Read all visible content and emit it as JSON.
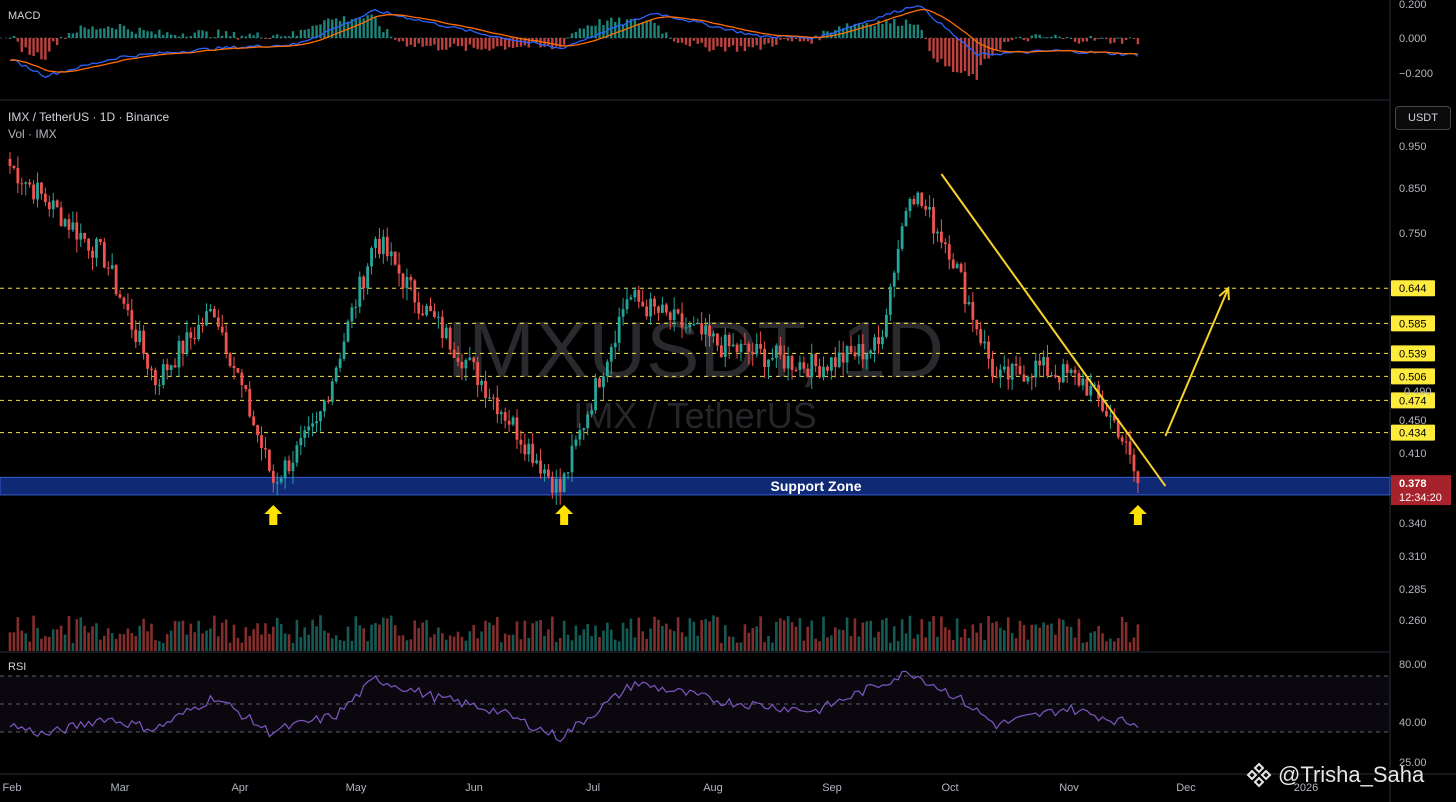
{
  "header": {
    "symbol_title": "IMX / TetherUS · 1D · Binance",
    "vol_label": "Vol · IMX",
    "macd_label": "MACD",
    "rsi_label": "RSI",
    "currency_button": "USDT",
    "watermark_symbol": "IMXUSDT, 1D",
    "watermark_name": "IMX / TetherUS"
  },
  "price_axis": {
    "ticks": [
      "0.950",
      "0.850",
      "0.750",
      "0.450",
      "0.410",
      "0.340",
      "0.310",
      "0.285",
      "0.260"
    ],
    "hidden_tick": "0.490"
  },
  "macd_axis": {
    "ticks": [
      "0.200",
      "0.000",
      "−0.200"
    ]
  },
  "rsi_axis": {
    "ticks": [
      "80.00",
      "40.00",
      "25.00"
    ]
  },
  "time_axis": {
    "labels": [
      "Feb",
      "Mar",
      "Apr",
      "May",
      "Jun",
      "Jul",
      "Aug",
      "Sep",
      "Oct",
      "Nov",
      "Dec",
      "2026"
    ]
  },
  "levels": {
    "values": [
      "0.644",
      "0.585",
      "0.539",
      "0.506",
      "0.474",
      "0.434"
    ],
    "current_price": "0.378",
    "countdown": "12:34:20",
    "support_zone_label": "Support Zone"
  },
  "credit": {
    "handle": "@Trisha_Saha"
  },
  "colors": {
    "up": "#26a69a",
    "down": "#ef5350",
    "level_line": "#f5e63a",
    "level_tag": "#ffeb3b",
    "trendline": "#f7d22a",
    "support_zone": "#12308a",
    "rsi": "#7e57c2",
    "macd": "#2962ff",
    "signal": "#ff6d00"
  },
  "chart_data": {
    "type": "candlestick",
    "symbol": "IMX / TetherUS",
    "interval": "1D",
    "exchange": "Binance",
    "close_path": [
      {
        "date": "Feb 1",
        "close": 0.9
      },
      {
        "date": "Feb 10",
        "close": 0.82
      },
      {
        "date": "Feb 25",
        "close": 0.7
      },
      {
        "date": "Mar 10",
        "close": 0.5
      },
      {
        "date": "Mar 25",
        "close": 0.61
      },
      {
        "date": "Apr 9",
        "close": 0.38
      },
      {
        "date": "Apr 20",
        "close": 0.44
      },
      {
        "date": "May 5",
        "close": 0.74
      },
      {
        "date": "May 15",
        "close": 0.63
      },
      {
        "date": "Jun 1",
        "close": 0.5
      },
      {
        "date": "Jun 21",
        "close": 0.37
      },
      {
        "date": "Jul 8",
        "close": 0.63
      },
      {
        "date": "Aug 1",
        "close": 0.55
      },
      {
        "date": "Aug 25",
        "close": 0.52
      },
      {
        "date": "Sep 10",
        "close": 0.55
      },
      {
        "date": "Sep 18",
        "close": 0.85
      },
      {
        "date": "Sep 28",
        "close": 0.72
      },
      {
        "date": "Oct 10",
        "close": 0.5
      },
      {
        "date": "Oct 20",
        "close": 0.52
      },
      {
        "date": "Nov 1",
        "close": 0.5
      },
      {
        "date": "Nov 10",
        "close": 0.44
      },
      {
        "date": "Nov 15",
        "close": 0.378
      }
    ],
    "last_close": 0.378,
    "horizontal_levels": [
      0.644,
      0.585,
      0.539,
      0.506,
      0.474,
      0.434
    ],
    "support_zone": [
      0.366,
      0.384
    ],
    "support_arrow_dates": [
      "Apr 9",
      "Jun 22",
      "Nov 15"
    ],
    "descending_trendline": [
      {
        "date": "Sep 26",
        "price": 0.88
      },
      {
        "date": "Nov 22",
        "price": 0.375
      }
    ],
    "projection_arrow": [
      {
        "date": "Nov 22",
        "price": 0.43
      },
      {
        "date": "Dec 8",
        "price": 0.644
      }
    ],
    "rsi_path": [
      {
        "date": "Feb 1",
        "rsi": 35
      },
      {
        "date": "Feb 10",
        "rsi": 28
      },
      {
        "date": "Feb 25",
        "rsi": 40
      },
      {
        "date": "Mar 10",
        "rsi": 32
      },
      {
        "date": "Mar 25",
        "rsi": 55
      },
      {
        "date": "Apr 8",
        "rsi": 30
      },
      {
        "date": "Apr 25",
        "rsi": 42
      },
      {
        "date": "May 5",
        "rsi": 68
      },
      {
        "date": "May 20",
        "rsi": 55
      },
      {
        "date": "Jun 5",
        "rsi": 45
      },
      {
        "date": "Jun 21",
        "rsi": 26
      },
      {
        "date": "Jul 10",
        "rsi": 65
      },
      {
        "date": "Aug 1",
        "rsi": 52
      },
      {
        "date": "Aug 25",
        "rsi": 45
      },
      {
        "date": "Sep 18",
        "rsi": 73
      },
      {
        "date": "Sep 30",
        "rsi": 55
      },
      {
        "date": "Oct 10",
        "rsi": 35
      },
      {
        "date": "Oct 28",
        "rsi": 47
      },
      {
        "date": "Nov 10",
        "rsi": 38
      },
      {
        "date": "Nov 15",
        "rsi": 36
      }
    ],
    "rsi_bands": [
      30,
      50,
      70
    ],
    "macd_path": [
      {
        "date": "Feb 1",
        "macd": -0.1
      },
      {
        "date": "Feb 10",
        "macd": -0.18
      },
      {
        "date": "Mar 1",
        "macd": -0.09
      },
      {
        "date": "Mar 25",
        "macd": -0.05
      },
      {
        "date": "Apr 15",
        "macd": -0.03
      },
      {
        "date": "May 5",
        "macd": 0.13
      },
      {
        "date": "Jun 1",
        "macd": 0.02
      },
      {
        "date": "Jun 21",
        "macd": -0.05
      },
      {
        "date": "Jul 15",
        "macd": 0.12
      },
      {
        "date": "Aug 10",
        "macd": 0.01
      },
      {
        "date": "Aug 25",
        "macd": 0.0
      },
      {
        "date": "Sep 20",
        "macd": 0.16
      },
      {
        "date": "Oct 5",
        "macd": -0.08
      },
      {
        "date": "Oct 25",
        "macd": -0.06
      },
      {
        "date": "Nov 15",
        "macd": -0.08
      }
    ],
    "xlabel": "",
    "ylabel": ""
  }
}
